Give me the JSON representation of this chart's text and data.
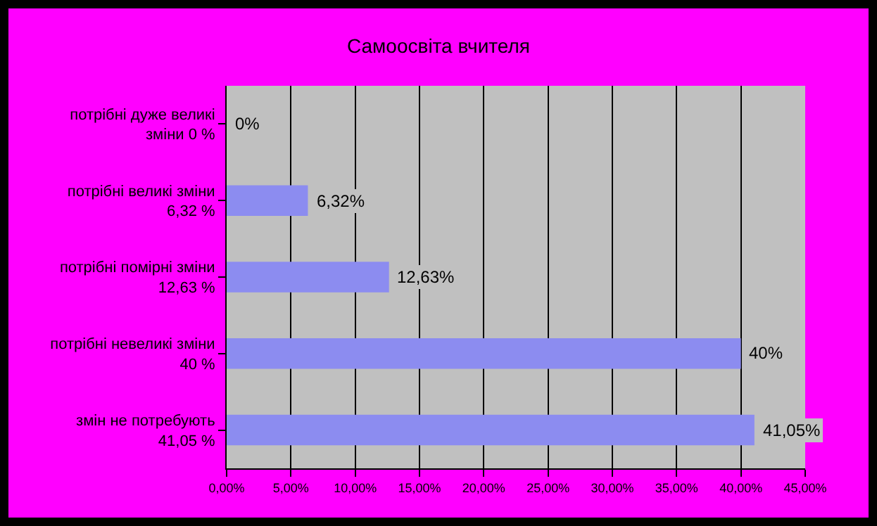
{
  "chart_data": {
    "type": "bar",
    "orientation": "horizontal",
    "title": "Самоосвіта вчителя",
    "categories": [
      "потрібні дуже великі зміни 0 %",
      "потрібні великі зміни 6,32 %",
      "потрібні помірні зміни 12,63 %",
      "потрібні невеликі зміни 40 %",
      "змін не потребують 41,05 %"
    ],
    "values": [
      0,
      6.32,
      12.63,
      40,
      41.05
    ],
    "value_labels": [
      "0%",
      "6,32%",
      "12,63%",
      "40%",
      "41,05%"
    ],
    "color": "#8c8cf0",
    "xlim": [
      0,
      45
    ],
    "xticks": [
      {
        "value": 0,
        "label": "0,00%"
      },
      {
        "value": 5,
        "label": "5,00%"
      },
      {
        "value": 10,
        "label": "10,00%"
      },
      {
        "value": 15,
        "label": "15,00%"
      },
      {
        "value": 20,
        "label": "20,00%"
      },
      {
        "value": 25,
        "label": "25,00%"
      },
      {
        "value": 30,
        "label": "30,00%"
      },
      {
        "value": 35,
        "label": "35,00%"
      },
      {
        "value": 40,
        "label": "40,00%"
      },
      {
        "value": 45,
        "label": "45,00%"
      }
    ],
    "grid": "x",
    "legend": false
  }
}
